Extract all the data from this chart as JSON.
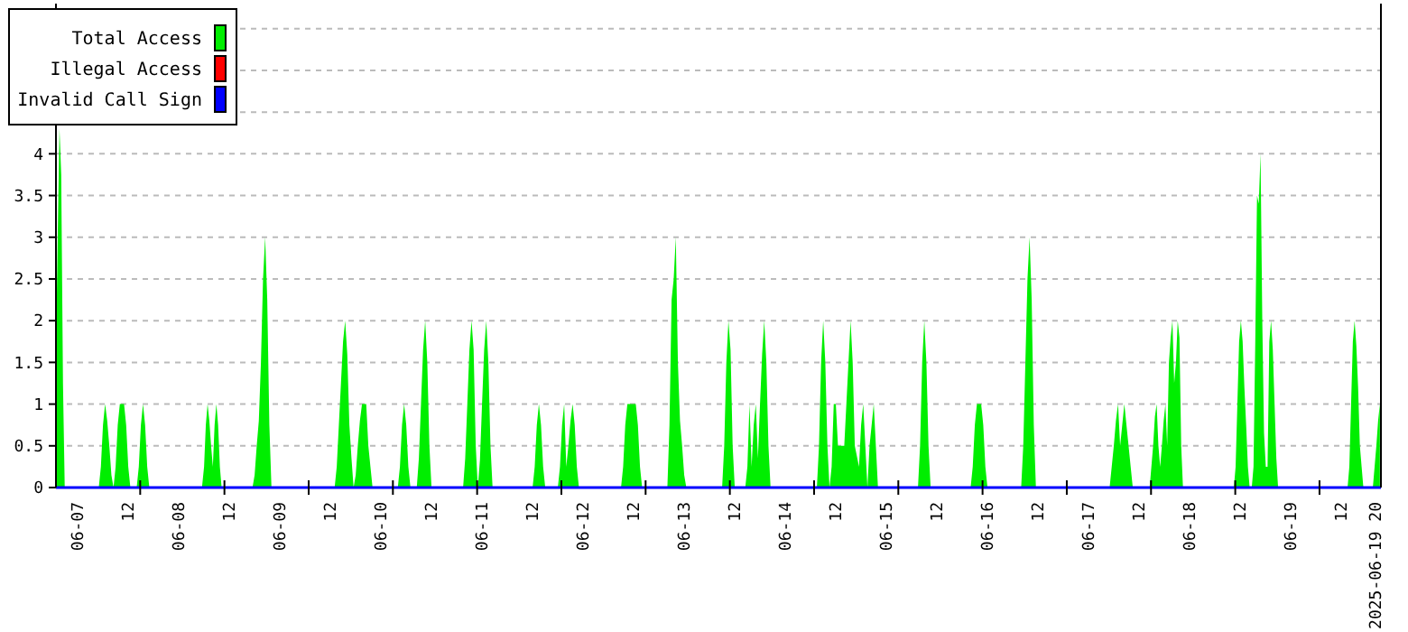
{
  "chart_data": {
    "type": "area",
    "grid": "y",
    "legend": "top left",
    "xlim": [
      "2025-06-06T18:50",
      "2025-06-19T21:25"
    ],
    "ylim": [
      0,
      5.8
    ],
    "yticks": [
      0,
      0.5,
      1,
      1.5,
      2,
      2.5,
      3,
      3.5,
      4,
      {
        "value": 4.5,
        "label": null
      },
      {
        "value": 5,
        "label": null
      },
      {
        "value": 5.5,
        "label": null
      }
    ],
    "xticks": [
      {
        "value": "2025-06-07T00:00",
        "label": "06-07"
      },
      {
        "value": "2025-06-07T12:00",
        "label": "12"
      },
      {
        "value": "2025-06-08T00:00",
        "label": "06-08"
      },
      {
        "value": "2025-06-08T12:00",
        "label": "12"
      },
      {
        "value": "2025-06-09T00:00",
        "label": "06-09"
      },
      {
        "value": "2025-06-09T12:00",
        "label": "12"
      },
      {
        "value": "2025-06-10T00:00",
        "label": "06-10"
      },
      {
        "value": "2025-06-10T12:00",
        "label": "12"
      },
      {
        "value": "2025-06-11T00:00",
        "label": "06-11"
      },
      {
        "value": "2025-06-11T12:00",
        "label": "12"
      },
      {
        "value": "2025-06-12T00:00",
        "label": "06-12"
      },
      {
        "value": "2025-06-12T12:00",
        "label": "12"
      },
      {
        "value": "2025-06-13T00:00",
        "label": "06-13"
      },
      {
        "value": "2025-06-13T12:00",
        "label": "12"
      },
      {
        "value": "2025-06-14T00:00",
        "label": "06-14"
      },
      {
        "value": "2025-06-14T12:00",
        "label": "12"
      },
      {
        "value": "2025-06-15T00:00",
        "label": "06-15"
      },
      {
        "value": "2025-06-15T12:00",
        "label": "12"
      },
      {
        "value": "2025-06-16T00:00",
        "label": "06-16"
      },
      {
        "value": "2025-06-16T12:00",
        "label": "12"
      },
      {
        "value": "2025-06-17T00:00",
        "label": "06-17"
      },
      {
        "value": "2025-06-17T12:00",
        "label": "12"
      },
      {
        "value": "2025-06-18T00:00",
        "label": "06-18"
      },
      {
        "value": "2025-06-18T12:00",
        "label": "12"
      },
      {
        "value": "2025-06-19T00:00",
        "label": "06-19"
      },
      {
        "value": "2025-06-19T12:00",
        "label": "12"
      },
      {
        "value": "2025-06-19T20:00",
        "label": "2025-06-19 20"
      },
      {
        "value": "2025-06-07T14:50",
        "label": null
      },
      {
        "value": "2025-06-08T10:50",
        "label": null
      },
      {
        "value": "2025-06-09T06:50",
        "label": null
      },
      {
        "value": "2025-06-10T02:50",
        "label": null
      },
      {
        "value": "2025-06-10T22:50",
        "label": null
      },
      {
        "value": "2025-06-11T18:50",
        "label": null
      },
      {
        "value": "2025-06-12T14:50",
        "label": null
      },
      {
        "value": "2025-06-13T10:50",
        "label": null
      },
      {
        "value": "2025-06-14T06:50",
        "label": null
      },
      {
        "value": "2025-06-15T02:50",
        "label": null
      },
      {
        "value": "2025-06-15T22:50",
        "label": null
      },
      {
        "value": "2025-06-16T18:50",
        "label": null
      },
      {
        "value": "2025-06-17T14:50",
        "label": null
      },
      {
        "value": "2025-06-18T10:50",
        "label": null
      },
      {
        "value": "2025-06-19T06:50",
        "label": null
      }
    ],
    "series": [
      {
        "name": "Total Access",
        "color": "#00ee00",
        "x": [
          "2025-06-06T18:50",
          "2025-06-06T19:15",
          "2025-06-06T19:40",
          "2025-06-06T20:05",
          "2025-06-06T20:30",
          "2025-06-06T20:55",
          "2025-06-07T05:00",
          "2025-06-07T05:30",
          "2025-06-07T06:00",
          "2025-06-07T06:30",
          "2025-06-07T07:00",
          "2025-06-07T07:30",
          "2025-06-07T08:00",
          "2025-06-07T08:30",
          "2025-06-07T09:00",
          "2025-06-07T09:30",
          "2025-06-07T10:00",
          "2025-06-07T11:00",
          "2025-06-07T11:30",
          "2025-06-07T12:00",
          "2025-06-07T12:30",
          "2025-06-07T14:00",
          "2025-06-07T14:30",
          "2025-06-07T15:00",
          "2025-06-07T15:30",
          "2025-06-07T16:00",
          "2025-06-07T16:30",
          "2025-06-07T17:00",
          "2025-06-08T05:30",
          "2025-06-08T06:00",
          "2025-06-08T06:25",
          "2025-06-08T06:50",
          "2025-06-08T07:15",
          "2025-06-08T07:40",
          "2025-06-08T08:05",
          "2025-06-08T08:30",
          "2025-06-08T08:55",
          "2025-06-08T09:20",
          "2025-06-08T09:45",
          "2025-06-08T10:10",
          "2025-06-08T17:30",
          "2025-06-08T18:00",
          "2025-06-08T18:30",
          "2025-06-08T19:00",
          "2025-06-08T19:30",
          "2025-06-08T20:00",
          "2025-06-08T20:30",
          "2025-06-08T21:00",
          "2025-06-08T21:30",
          "2025-06-08T22:00",
          "2025-06-09T13:00",
          "2025-06-09T13:30",
          "2025-06-09T14:00",
          "2025-06-09T14:30",
          "2025-06-09T15:00",
          "2025-06-09T15:30",
          "2025-06-09T16:00",
          "2025-06-09T16:30",
          "2025-06-09T17:00",
          "2025-06-09T17:30",
          "2025-06-09T18:00",
          "2025-06-09T18:30",
          "2025-06-09T19:00",
          "2025-06-09T19:30",
          "2025-06-09T20:30",
          "2025-06-09T21:00",
          "2025-06-09T21:30",
          "2025-06-09T22:00",
          "2025-06-10T04:00",
          "2025-06-10T04:30",
          "2025-06-10T05:00",
          "2025-06-10T05:30",
          "2025-06-10T06:00",
          "2025-06-10T06:30",
          "2025-06-10T07:00",
          "2025-06-10T08:30",
          "2025-06-10T09:00",
          "2025-06-10T09:30",
          "2025-06-10T10:00",
          "2025-06-10T10:30",
          "2025-06-10T11:00",
          "2025-06-10T11:30",
          "2025-06-10T12:00",
          "2025-06-10T19:30",
          "2025-06-10T20:00",
          "2025-06-10T20:30",
          "2025-06-10T21:00",
          "2025-06-10T21:30",
          "2025-06-10T22:00",
          "2025-06-10T22:30",
          "2025-06-10T23:00",
          "2025-06-10T23:30",
          "2025-06-11T00:00",
          "2025-06-11T00:30",
          "2025-06-11T01:00",
          "2025-06-11T01:30",
          "2025-06-11T02:00",
          "2025-06-11T02:30",
          "2025-06-11T12:00",
          "2025-06-11T12:30",
          "2025-06-11T13:00",
          "2025-06-11T13:30",
          "2025-06-11T14:00",
          "2025-06-11T14:30",
          "2025-06-11T15:00",
          "2025-06-11T18:00",
          "2025-06-11T18:30",
          "2025-06-11T19:00",
          "2025-06-11T19:30",
          "2025-06-11T20:00",
          "2025-06-11T20:30",
          "2025-06-11T21:00",
          "2025-06-11T21:30",
          "2025-06-11T22:00",
          "2025-06-11T22:30",
          "2025-06-11T23:00",
          "2025-06-12T09:00",
          "2025-06-12T09:30",
          "2025-06-12T10:00",
          "2025-06-12T10:30",
          "2025-06-12T12:30",
          "2025-06-12T13:00",
          "2025-06-12T13:30",
          "2025-06-12T14:00",
          "2025-06-12T20:00",
          "2025-06-12T20:30",
          "2025-06-12T21:00",
          "2025-06-12T21:30",
          "2025-06-12T22:00",
          "2025-06-12T22:30",
          "2025-06-12T23:00",
          "2025-06-12T23:30",
          "2025-06-13T00:00",
          "2025-06-13T00:30",
          "2025-06-13T09:00",
          "2025-06-13T09:30",
          "2025-06-13T10:00",
          "2025-06-13T10:30",
          "2025-06-13T11:00",
          "2025-06-13T11:30",
          "2025-06-13T12:00",
          "2025-06-13T14:30",
          "2025-06-13T15:00",
          "2025-06-13T15:30",
          "2025-06-13T16:00",
          "2025-06-13T16:30",
          "2025-06-13T17:00",
          "2025-06-13T17:30",
          "2025-06-13T18:00",
          "2025-06-13T18:30",
          "2025-06-13T19:00",
          "2025-06-13T19:30",
          "2025-06-13T20:00",
          "2025-06-13T20:30",
          "2025-06-14T07:30",
          "2025-06-14T08:00",
          "2025-06-14T08:30",
          "2025-06-14T09:00",
          "2025-06-14T09:30",
          "2025-06-14T10:00",
          "2025-06-14T10:30",
          "2025-06-14T11:00",
          "2025-06-14T11:30",
          "2025-06-14T12:00",
          "2025-06-14T12:30",
          "2025-06-14T14:00",
          "2025-06-14T14:30",
          "2025-06-14T15:00",
          "2025-06-14T15:30",
          "2025-06-14T16:00",
          "2025-06-14T16:30",
          "2025-06-14T17:30",
          "2025-06-14T18:00",
          "2025-06-14T18:30",
          "2025-06-14T19:00",
          "2025-06-14T19:30",
          "2025-06-14T20:00",
          "2025-06-14T20:30",
          "2025-06-14T21:00",
          "2025-06-14T21:30",
          "2025-06-14T22:00",
          "2025-06-15T07:30",
          "2025-06-15T08:00",
          "2025-06-15T08:30",
          "2025-06-15T09:00",
          "2025-06-15T09:30",
          "2025-06-15T10:00",
          "2025-06-15T10:30",
          "2025-06-15T20:00",
          "2025-06-15T20:30",
          "2025-06-15T21:00",
          "2025-06-15T21:30",
          "2025-06-15T22:30",
          "2025-06-15T23:00",
          "2025-06-15T23:30",
          "2025-06-16T00:00",
          "2025-06-16T08:00",
          "2025-06-16T08:30",
          "2025-06-16T09:00",
          "2025-06-16T09:30",
          "2025-06-16T10:00",
          "2025-06-16T10:30",
          "2025-06-16T11:00",
          "2025-06-16T11:30",
          "2025-06-17T05:00",
          "2025-06-17T05:30",
          "2025-06-17T06:00",
          "2025-06-17T06:30",
          "2025-06-17T07:00",
          "2025-06-17T07:30",
          "2025-06-17T08:00",
          "2025-06-17T08:30",
          "2025-06-17T09:00",
          "2025-06-17T09:30",
          "2025-06-17T10:00",
          "2025-06-17T10:30",
          "2025-06-17T14:30",
          "2025-06-17T14:55",
          "2025-06-17T15:20",
          "2025-06-17T15:45",
          "2025-06-17T16:10",
          "2025-06-17T16:35",
          "2025-06-17T17:00",
          "2025-06-17T17:25",
          "2025-06-17T17:50",
          "2025-06-17T18:15",
          "2025-06-17T18:40",
          "2025-06-17T19:05",
          "2025-06-17T19:30",
          "2025-06-17T19:55",
          "2025-06-17T20:20",
          "2025-06-17T20:45",
          "2025-06-17T21:10",
          "2025-06-17T21:35",
          "2025-06-17T22:00",
          "2025-06-17T22:25",
          "2025-06-18T10:30",
          "2025-06-18T10:55",
          "2025-06-18T11:20",
          "2025-06-18T11:45",
          "2025-06-18T12:10",
          "2025-06-18T12:35",
          "2025-06-18T13:00",
          "2025-06-18T13:25",
          "2025-06-18T13:50",
          "2025-06-18T14:15",
          "2025-06-18T14:45",
          "2025-06-18T15:10",
          "2025-06-18T15:35",
          "2025-06-18T16:00",
          "2025-06-18T16:25",
          "2025-06-18T16:50",
          "2025-06-18T17:15",
          "2025-06-18T17:40",
          "2025-06-18T18:05",
          "2025-06-18T18:30",
          "2025-06-18T18:55",
          "2025-06-18T19:20",
          "2025-06-18T19:45",
          "2025-06-18T20:10",
          "2025-06-18T20:35",
          "2025-06-18T21:00",
          "2025-06-19T13:30",
          "2025-06-19T13:55",
          "2025-06-19T14:20",
          "2025-06-19T14:45",
          "2025-06-19T15:10",
          "2025-06-19T15:35",
          "2025-06-19T16:00",
          "2025-06-19T16:25",
          "2025-06-19T16:50",
          "2025-06-19T17:15",
          "2025-06-19T19:30",
          "2025-06-19T19:55",
          "2025-06-19T20:20",
          "2025-06-19T20:45",
          "2025-06-19T21:10"
        ],
        "values": [
          1.6,
          3,
          4.3,
          3.75,
          1.25,
          0,
          0,
          0.25,
          0.75,
          1,
          0.8,
          0.5,
          0.15,
          0,
          0.25,
          0.75,
          1,
          1,
          0.75,
          0.25,
          0,
          0,
          0.25,
          0.75,
          1,
          0.75,
          0.25,
          0,
          0,
          0.25,
          0.75,
          1,
          0.8,
          0.5,
          0.25,
          0.75,
          1,
          0.75,
          0.25,
          0,
          0,
          0.15,
          0.5,
          0.8,
          1.5,
          2.5,
          3,
          2.25,
          0.75,
          0,
          0,
          0.25,
          0.75,
          1.25,
          1.75,
          2,
          1.6,
          0.75,
          0.35,
          0,
          0.15,
          0.5,
          0.8,
          1,
          1,
          0.5,
          0.25,
          0,
          0,
          0.25,
          0.75,
          1,
          0.75,
          0.25,
          0,
          0,
          0.35,
          1,
          1.65,
          2,
          1.5,
          0.5,
          0,
          0,
          0.35,
          1,
          1.65,
          2,
          1.65,
          0.5,
          0,
          0.33,
          1,
          1.65,
          2,
          1.5,
          0.5,
          0,
          0,
          0.25,
          0.75,
          1,
          0.75,
          0.25,
          0,
          0,
          0.25,
          0.75,
          1,
          0.25,
          0.5,
          0.8,
          1,
          0.75,
          0.25,
          0,
          0,
          0.25,
          0.75,
          1,
          1,
          0.75,
          0.25,
          0,
          0,
          0.75,
          2.25,
          2.5,
          3,
          1.5,
          0.8,
          0.5,
          0.15,
          0,
          0,
          0.5,
          1.5,
          2,
          1.65,
          0.5,
          0,
          0,
          0.25,
          1,
          0.25,
          0.75,
          1,
          0.35,
          1,
          1.6,
          2,
          1.5,
          0.5,
          0,
          0,
          0.5,
          1.5,
          2,
          1.5,
          0.5,
          0,
          0.25,
          1,
          1,
          0.5,
          0.5,
          1,
          1.5,
          2,
          1.5,
          0.5,
          0.25,
          0.75,
          1,
          0.5,
          0,
          0.5,
          0.75,
          1,
          0.5,
          0,
          0,
          0.5,
          1.5,
          2,
          1.5,
          0.5,
          0,
          0,
          0.25,
          0.75,
          1,
          1,
          0.75,
          0.25,
          0,
          0,
          0.5,
          1.5,
          2.5,
          3,
          2.25,
          0.75,
          0,
          0,
          0.25,
          0.5,
          0.8,
          1,
          0.5,
          0.75,
          1,
          0.75,
          0.5,
          0.25,
          0,
          0,
          0.25,
          0.5,
          0.85,
          1,
          0.5,
          0.25,
          0.5,
          0.8,
          1,
          0.5,
          1.5,
          1.8,
          2,
          1.25,
          1.5,
          2,
          1.8,
          0.5,
          0,
          0,
          0.25,
          1,
          1.75,
          2,
          1.75,
          1.2,
          0.75,
          0.25,
          0,
          0,
          0.25,
          1.75,
          3.5,
          3.4,
          4,
          2,
          0.65,
          0.25,
          0.25,
          1.75,
          2,
          1.65,
          1,
          0.35,
          0,
          0,
          0.25,
          1,
          1.75,
          2,
          1.7,
          1.2,
          0.5,
          0.25,
          0,
          0,
          0.25,
          0.5,
          0.8,
          1
        ]
      },
      {
        "name": "Illegal Access",
        "color": "#ff0000",
        "type": "line"
      },
      {
        "name": "Invalid Call Sign",
        "color": "#0000ff",
        "type": "line",
        "x": [
          "2025-06-06T18:50",
          "2025-06-19T21:25"
        ],
        "values": [
          0,
          0
        ]
      }
    ]
  }
}
